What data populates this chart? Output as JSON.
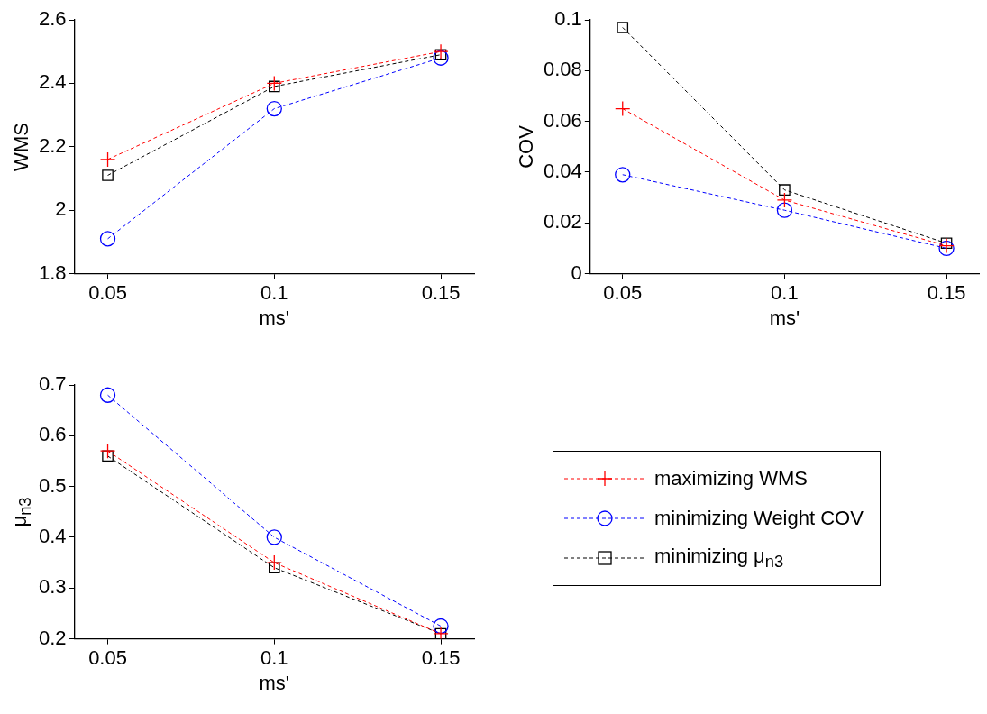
{
  "chart_data": [
    {
      "type": "line",
      "xlabel": "ms'",
      "ylabel": "WMS",
      "x": [
        0.05,
        0.1,
        0.15
      ],
      "xlim": [
        0.04,
        0.16
      ],
      "xticks": [
        0.05,
        0.1,
        0.15
      ],
      "ylim": [
        1.8,
        2.6
      ],
      "yticks": [
        1.8,
        2,
        2.2,
        2.4,
        2.6
      ],
      "line_style": "dashed",
      "series": [
        {
          "color": "#ff0000",
          "marker": "cross",
          "values": [
            2.16,
            2.4,
            2.5
          ]
        },
        {
          "color": "#0000ff",
          "marker": "circle",
          "values": [
            1.91,
            2.32,
            2.48
          ]
        },
        {
          "color": "#000000",
          "marker": "square",
          "values": [
            2.11,
            2.39,
            2.49
          ]
        }
      ]
    },
    {
      "type": "line",
      "xlabel": "ms'",
      "ylabel": "COV",
      "x": [
        0.05,
        0.1,
        0.15
      ],
      "xlim": [
        0.04,
        0.16
      ],
      "xticks": [
        0.05,
        0.1,
        0.15
      ],
      "ylim": [
        0,
        0.1
      ],
      "yticks": [
        0,
        0.02,
        0.04,
        0.06,
        0.08,
        0.1
      ],
      "line_style": "dashed",
      "series": [
        {
          "color": "#ff0000",
          "marker": "cross",
          "values": [
            0.065,
            0.029,
            0.011
          ]
        },
        {
          "color": "#0000ff",
          "marker": "circle",
          "values": [
            0.039,
            0.025,
            0.01
          ]
        },
        {
          "color": "#000000",
          "marker": "square",
          "values": [
            0.097,
            0.033,
            0.012
          ]
        }
      ]
    },
    {
      "type": "line",
      "xlabel": "ms'",
      "ylabel": "μ$_{n3}$",
      "x": [
        0.05,
        0.1,
        0.15
      ],
      "xlim": [
        0.04,
        0.16
      ],
      "xticks": [
        0.05,
        0.1,
        0.15
      ],
      "ylim": [
        0.2,
        0.7
      ],
      "yticks": [
        0.2,
        0.3,
        0.4,
        0.5,
        0.6,
        0.7
      ],
      "line_style": "dashed",
      "legend": "right",
      "series": [
        {
          "name": "maximizing WMS",
          "color": "#ff0000",
          "marker": "cross",
          "values": [
            0.57,
            0.35,
            0.21
          ]
        },
        {
          "name": "minimizing Weight COV",
          "color": "#0000ff",
          "marker": "circle",
          "values": [
            0.68,
            0.4,
            0.225
          ]
        },
        {
          "name": "minimizing μ$_{n3}$",
          "color": "#000000",
          "marker": "square",
          "values": [
            0.56,
            0.34,
            0.21
          ]
        }
      ]
    }
  ]
}
